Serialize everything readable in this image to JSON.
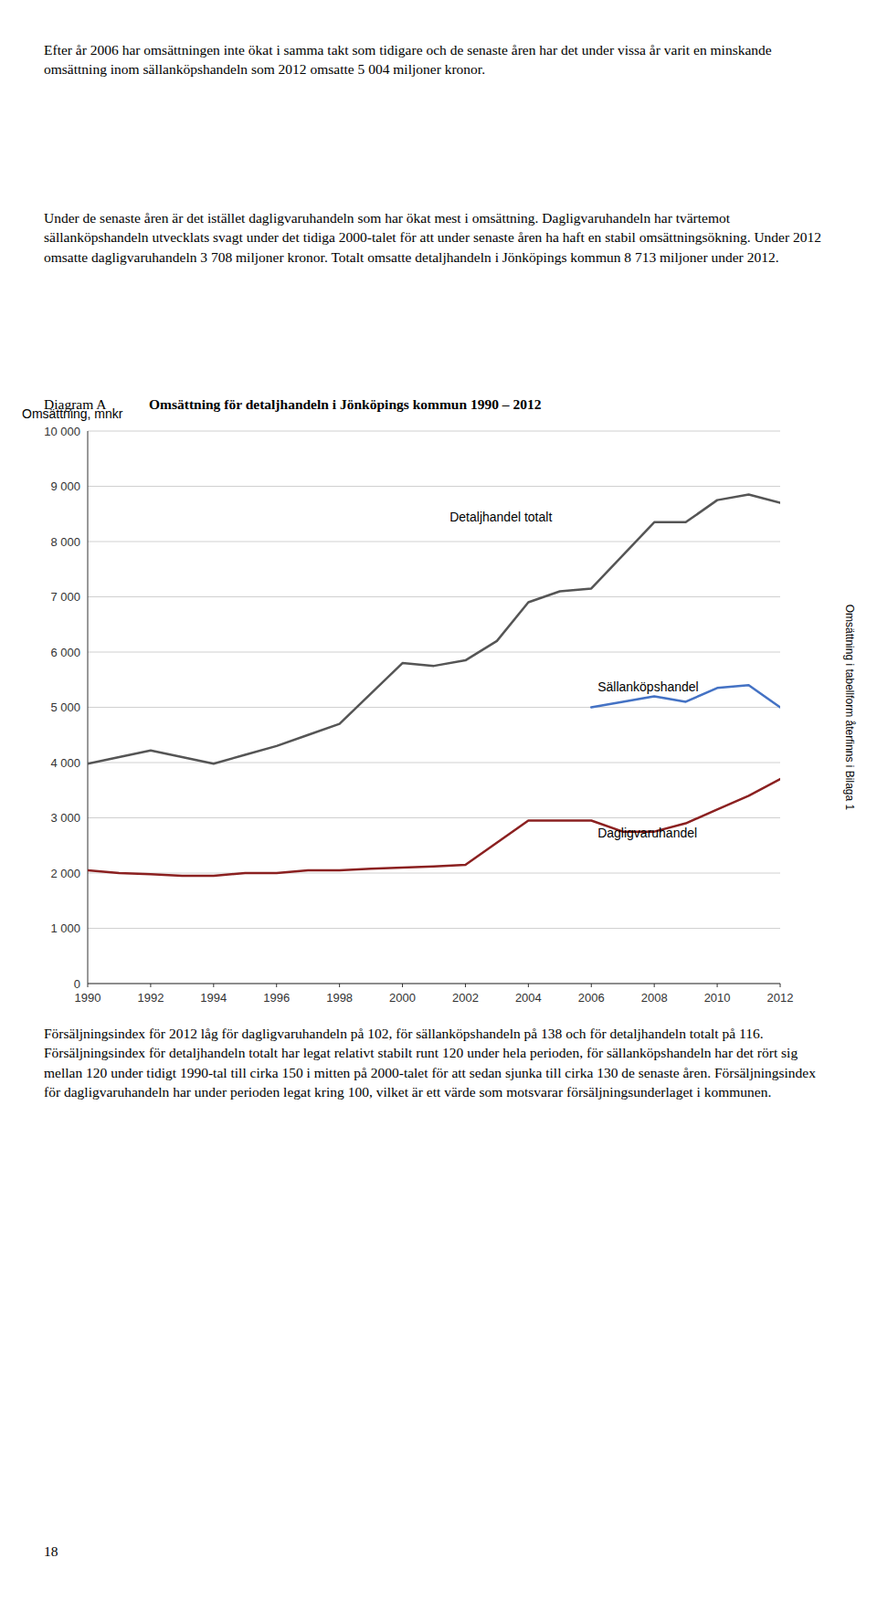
{
  "page": {
    "text_before": [
      "Efter år 2006 har omsättningen inte ökat i samma takt som tidigare och de senaste åren har det under vissa år varit en minskande omsättning inom sällanköpshandeln som 2012 omsatte 5 004 miljoner kronor.",
      "Under de senaste åren är det istället dagligvaruhandeln som har ökat mest i omsättning. Dagligvaruhandeln har tvärtemot sällanköpshandeln utvecklats svagt under det tidiga 2000-talet för att under senaste åren ha haft en stabil omsättningsökning. Under 2012 omsatte dagligvaruhandeln 3 708 miljoner kronor. Totalt omsatte detaljhandeln i Jönköpings kommun 8 713 miljoner under 2012."
    ],
    "text_after": [
      "Försäljningsindex för 2012 låg för dagligvaruhandeln på 102, för sällanköpshandeln på 138 och för detaljhandeln totalt på 116.  Försäljningsindex för detaljhandeln totalt har legat relativt stabilt runt 120 under hela perioden, för sällanköpshandeln har det rört sig mellan 120 under tidigt 1990-tal till cirka 150 i mitten på 2000-talet för att sedan sjunka till cirka 130 de senaste åren. Försäljningsindex för dagligvaruhandeln har under perioden legat kring 100, vilket är ett värde som motsvarar försäljningsunderlaget i kommunen."
    ],
    "page_number": "18"
  },
  "chart_data": {
    "type": "line",
    "label": "Diagram A",
    "title": "Omsättning för detaljhandeln i Jönköpings kommun 1990 – 2012",
    "ylabel": "Omsättning, mnkr",
    "note": "Omsättning i tabellform återfinns i Bilaga 1",
    "x": [
      1990,
      1991,
      1992,
      1993,
      1994,
      1995,
      1996,
      1997,
      1998,
      1999,
      2000,
      2001,
      2002,
      2003,
      2004,
      2005,
      2006,
      2007,
      2008,
      2009,
      2010,
      2011,
      2012
    ],
    "series": [
      {
        "color": "#555555",
        "values": [
          3980,
          4100,
          4220,
          4100,
          3980,
          4140,
          4300,
          4500,
          4700,
          5250,
          5800,
          5750,
          5850,
          6200,
          6900,
          7100,
          7150,
          7750,
          8350,
          8350,
          8750,
          8850,
          8700
        ]
      },
      {
        "color": "#4472c4",
        "values": [
          null,
          null,
          null,
          null,
          null,
          null,
          null,
          null,
          null,
          null,
          null,
          null,
          null,
          null,
          null,
          null,
          5000,
          5100,
          5200,
          5100,
          5350,
          5400,
          5000
        ]
      },
      {
        "color": "#8b2020",
        "values": [
          2050,
          2000,
          1980,
          1950,
          1950,
          2000,
          2000,
          2050,
          2050,
          2080,
          2100,
          2120,
          2150,
          2550,
          2950,
          2950,
          2950,
          2750,
          2750,
          2900,
          3150,
          3400,
          3700
        ]
      }
    ],
    "annotations": [
      {
        "text": "Detaljhandel totalt",
        "x": 2001.5,
        "y": 8300
      },
      {
        "text": "Sällanköpshandel",
        "x": 2006.2,
        "y": 5230
      },
      {
        "text": "Dagligvaruhandel",
        "x": 2006.2,
        "y": 2580
      }
    ],
    "xlim": [
      1990,
      2012
    ],
    "xticks": [
      1990,
      1992,
      1994,
      1996,
      1998,
      2000,
      2002,
      2004,
      2006,
      2008,
      2010,
      2012
    ],
    "ylim": [
      0,
      10000
    ],
    "yticks": [
      0,
      {
        "value": 1000,
        "label": "1 000"
      },
      {
        "value": 2000,
        "label": "2 000"
      },
      {
        "value": 3000,
        "label": "3 000"
      },
      {
        "value": 4000,
        "label": "4 000"
      },
      {
        "value": 5000,
        "label": "5 000"
      },
      {
        "value": 6000,
        "label": "6 000"
      },
      {
        "value": 7000,
        "label": "7 000"
      },
      {
        "value": 8000,
        "label": "8 000"
      },
      {
        "value": 9000,
        "label": "9 000"
      },
      {
        "value": 10000,
        "label": "10 000"
      }
    ],
    "grid": true
  }
}
